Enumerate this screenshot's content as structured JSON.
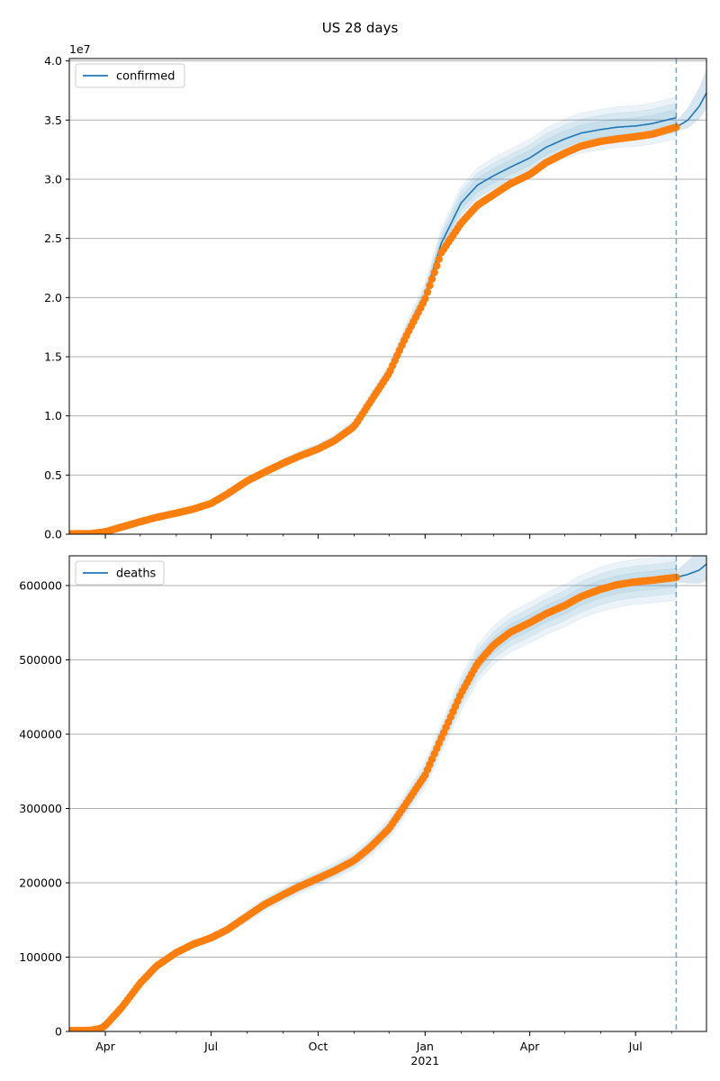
{
  "figure": {
    "title": "US 28 days"
  },
  "chart_data": [
    {
      "type": "line",
      "legend": [
        "confirmed"
      ],
      "legend_placement": "top-left",
      "scale_label": "1e7",
      "grid": "y",
      "ylim": [
        0,
        40200000
      ],
      "xlim": [
        "2020-03-01",
        "2021-08-31"
      ],
      "yticks": [
        {
          "value": 0,
          "label": "0.0"
        },
        {
          "value": 5000000,
          "label": "0.5"
        },
        {
          "value": 10000000,
          "label": "1.0"
        },
        {
          "value": 15000000,
          "label": "1.5"
        },
        {
          "value": 20000000,
          "label": "2.0"
        },
        {
          "value": 25000000,
          "label": "2.5"
        },
        {
          "value": 30000000,
          "label": "3.0"
        },
        {
          "value": 35000000,
          "label": "3.5"
        },
        {
          "value": 40000000,
          "label": "4.0"
        }
      ],
      "forecast_start": "2021-08-05",
      "observed": {
        "x": [
          "2020-03-01",
          "2020-03-20",
          "2020-04-01",
          "2020-04-15",
          "2020-05-01",
          "2020-05-15",
          "2020-06-01",
          "2020-06-15",
          "2020-07-01",
          "2020-07-15",
          "2020-08-01",
          "2020-08-15",
          "2020-09-01",
          "2020-09-15",
          "2020-10-01",
          "2020-10-15",
          "2020-11-01",
          "2020-11-15",
          "2020-12-01",
          "2020-12-15",
          "2021-01-01",
          "2021-01-15",
          "2021-02-01",
          "2021-02-15",
          "2021-03-01",
          "2021-03-15",
          "2021-04-01",
          "2021-04-15",
          "2021-05-01",
          "2021-05-15",
          "2021-06-01",
          "2021-06-15",
          "2021-07-01",
          "2021-07-15",
          "2021-08-05"
        ],
        "y": [
          30000,
          50000,
          200000,
          600000,
          1050000,
          1420000,
          1780000,
          2100000,
          2600000,
          3400000,
          4500000,
          5200000,
          6000000,
          6600000,
          7200000,
          7900000,
          9100000,
          11200000,
          13600000,
          16600000,
          19900000,
          23800000,
          26300000,
          27800000,
          28700000,
          29600000,
          30400000,
          31400000,
          32200000,
          32800000,
          33200000,
          33400000,
          33600000,
          33800000,
          34400000
        ]
      },
      "model": {
        "x": [
          "2020-03-01",
          "2020-03-20",
          "2020-04-01",
          "2020-04-15",
          "2020-05-01",
          "2020-05-15",
          "2020-06-01",
          "2020-06-15",
          "2020-07-01",
          "2020-07-15",
          "2020-08-01",
          "2020-08-15",
          "2020-09-01",
          "2020-09-15",
          "2020-10-01",
          "2020-10-15",
          "2020-11-01",
          "2020-11-15",
          "2020-12-01",
          "2020-12-15",
          "2021-01-01",
          "2021-01-15",
          "2021-02-01",
          "2021-02-15",
          "2021-03-01",
          "2021-03-15",
          "2021-04-01",
          "2021-04-15",
          "2021-05-01",
          "2021-05-15",
          "2021-06-01",
          "2021-06-15",
          "2021-07-01",
          "2021-07-15",
          "2021-08-05"
        ],
        "y": [
          30000,
          50000,
          200000,
          600000,
          1050000,
          1420000,
          1780000,
          2100000,
          2600000,
          3400000,
          4500000,
          5250000,
          6050000,
          6700000,
          7300000,
          8000000,
          9200000,
          11300000,
          13700000,
          16800000,
          20200000,
          24600000,
          28000000,
          29500000,
          30300000,
          31000000,
          31800000,
          32700000,
          33400000,
          33900000,
          34200000,
          34400000,
          34500000,
          34700000,
          35200000
        ]
      },
      "forecast": {
        "x": [
          "2021-08-05",
          "2021-08-15",
          "2021-08-25",
          "2021-08-31"
        ],
        "y": [
          34400000,
          35000000,
          36200000,
          37300000
        ]
      }
    },
    {
      "type": "line",
      "legend": [
        "deaths"
      ],
      "legend_placement": "top-left",
      "grid": "y",
      "ylim": [
        0,
        640000
      ],
      "xlim": [
        "2020-03-01",
        "2021-08-31"
      ],
      "yticks": [
        {
          "value": 0,
          "label": "0"
        },
        {
          "value": 100000,
          "label": "100000"
        },
        {
          "value": 200000,
          "label": "200000"
        },
        {
          "value": 300000,
          "label": "300000"
        },
        {
          "value": 400000,
          "label": "400000"
        },
        {
          "value": 500000,
          "label": "500000"
        },
        {
          "value": 600000,
          "label": "600000"
        }
      ],
      "xticks": [
        {
          "date": "2020-04-01",
          "label": "Apr"
        },
        {
          "date": "2020-07-01",
          "label": "Jul"
        },
        {
          "date": "2020-10-01",
          "label": "Oct"
        },
        {
          "date": "2021-01-01",
          "label": "Jan"
        },
        {
          "date": "2021-04-01",
          "label": "Apr"
        },
        {
          "date": "2021-07-01",
          "label": "Jul"
        }
      ],
      "year_label": "2021",
      "forecast_start": "2021-08-05",
      "observed": {
        "x": [
          "2020-03-01",
          "2020-03-20",
          "2020-03-28",
          "2020-04-01",
          "2020-04-15",
          "2020-05-01",
          "2020-05-15",
          "2020-06-01",
          "2020-06-15",
          "2020-07-01",
          "2020-07-15",
          "2020-08-01",
          "2020-08-15",
          "2020-09-01",
          "2020-09-15",
          "2020-10-01",
          "2020-10-15",
          "2020-11-01",
          "2020-11-15",
          "2020-12-01",
          "2020-12-15",
          "2021-01-01",
          "2021-01-15",
          "2021-02-01",
          "2021-02-15",
          "2021-03-01",
          "2021-03-15",
          "2021-04-01",
          "2021-04-15",
          "2021-05-01",
          "2021-05-15",
          "2021-06-01",
          "2021-06-15",
          "2021-07-01",
          "2021-07-15",
          "2021-08-05"
        ],
        "y": [
          1000,
          1500,
          4000,
          8000,
          32000,
          65000,
          88000,
          106000,
          117000,
          126000,
          137000,
          155000,
          170000,
          184000,
          195000,
          206000,
          216000,
          230000,
          248000,
          273000,
          305000,
          345000,
          395000,
          455000,
          495000,
          520000,
          537000,
          550000,
          562000,
          573000,
          585000,
          595000,
          601000,
          605000,
          607000,
          611000
        ]
      },
      "forecast": {
        "x": [
          "2021-08-05",
          "2021-08-15",
          "2021-08-25",
          "2021-08-31"
        ],
        "y": [
          611000,
          615000,
          621000,
          629000
        ]
      }
    }
  ],
  "colors": {
    "observed": "#ff7f0e",
    "model": "#1f77b4",
    "band": "#1f77b4",
    "forecast_line": "#1f77b4",
    "grid": "#b0b0b0"
  }
}
